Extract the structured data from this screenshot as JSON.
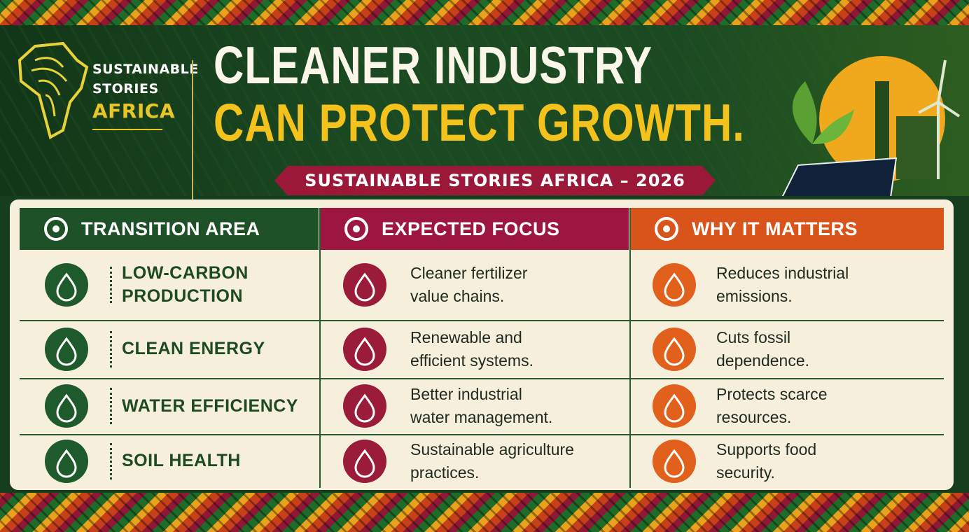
{
  "brand": {
    "line1": "SUSTAINABLE",
    "line2": "STORIES",
    "line3": "AFRICA"
  },
  "header": {
    "title_line1": "CLEANER INDUSTRY",
    "title_line2": "CAN PROTECT GROWTH.",
    "banner": "SUSTAINABLE STORIES AFRICA – 2026"
  },
  "table": {
    "headers": [
      "TRANSITION AREA",
      "EXPECTED FOCUS",
      "WHY IT MATTERS"
    ],
    "rows": [
      [
        [
          "LOW-CARBON",
          "PRODUCTION"
        ],
        [
          "Cleaner fertilizer",
          "value chains."
        ],
        [
          "Reduces industrial",
          "emissions."
        ]
      ],
      [
        [
          "CLEAN ENERGY"
        ],
        [
          "Renewable and",
          "efficient systems."
        ],
        [
          "Cuts fossil",
          "dependence."
        ]
      ],
      [
        [
          "WATER EFFICIENCY"
        ],
        [
          "Better industrial",
          "water management."
        ],
        [
          "Protects scarce",
          "resources."
        ]
      ],
      [
        [
          "SOIL HEALTH"
        ],
        [
          "Sustainable agriculture",
          "practices."
        ],
        [
          "Supports food",
          "security."
        ]
      ]
    ]
  }
}
